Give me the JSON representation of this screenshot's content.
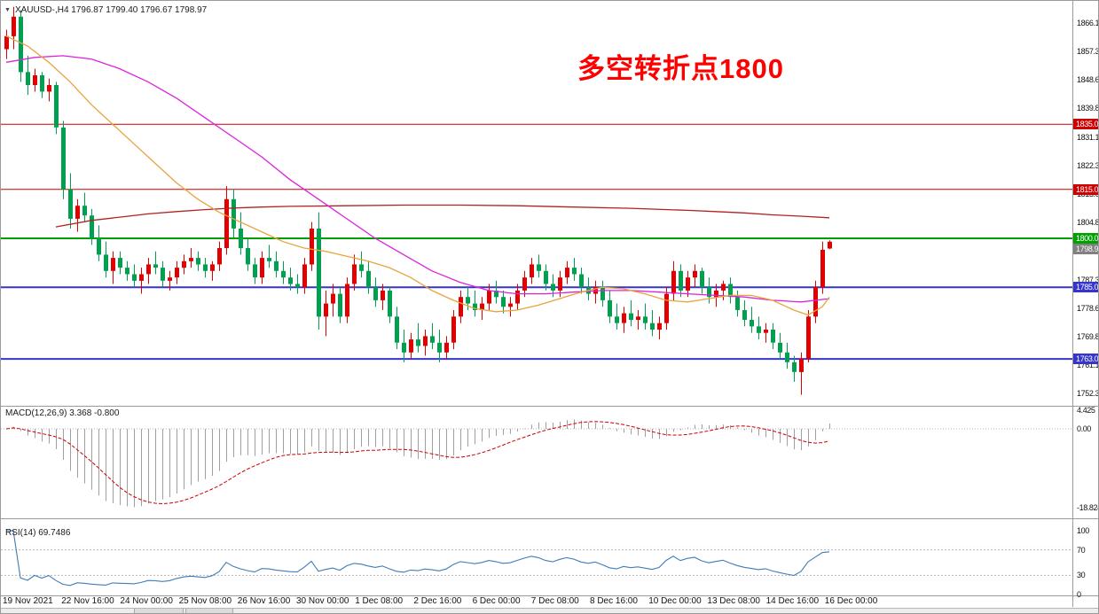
{
  "header": {
    "collapse_icon": "▼",
    "symbol_line": "XAUUSD-,H4 1796.87 1799.40 1796.67 1798.97"
  },
  "annotation": {
    "text": "多空转折点1800",
    "color": "#ff0000"
  },
  "panels": {
    "macd": {
      "label": "MACD(12,26,9) 3.368 -0.800",
      "scale_labels": [
        "4.425",
        "0.00",
        "-18.824"
      ]
    },
    "rsi": {
      "label": "RSI(14) 69.7486",
      "scale_labels": [
        "100",
        "70",
        "30",
        "0"
      ],
      "levels": [
        70,
        30
      ]
    }
  },
  "chart_data": {
    "type": "candlestick",
    "symbol": "XAUUSD-",
    "timeframe": "H4",
    "current_ohlc": {
      "open": "1796.87",
      "high": "1799.40",
      "low": "1796.67",
      "close": "1798.97"
    },
    "ylim": [
      1748.9,
      1870.7
    ],
    "price_axis_labels": [
      "1866.10",
      "1857.35",
      "1848.60",
      "1839.85",
      "1831.10",
      "1822.35",
      "1813.60",
      "1804.85",
      "1796.10",
      "1787.35",
      "1778.60",
      "1769.85",
      "1761.10",
      "1752.35"
    ],
    "x_axis_labels": [
      "19 Nov 2021",
      "22 Nov 16:00",
      "24 Nov 00:00",
      "25 Nov 08:00",
      "26 Nov 16:00",
      "30 Nov 00:00",
      "1 Dec 08:00",
      "2 Dec 16:00",
      "6 Dec 00:00",
      "7 Dec 08:00",
      "8 Dec 16:00",
      "10 Dec 00:00",
      "13 Dec 08:00",
      "14 Dec 16:00",
      "16 Dec 00:00"
    ],
    "horizontal_lines": [
      {
        "price": 1835.0,
        "label": "1835.00",
        "color": "#cc0000",
        "width": 1
      },
      {
        "price": 1815.0,
        "label": "1815.00",
        "color": "#cc0000",
        "width": 1
      },
      {
        "price": 1800.0,
        "label": "1800.00",
        "color": "#00a000",
        "width": 2
      },
      {
        "price": 1785.0,
        "label": "1785.00",
        "color": "#3535cc",
        "width": 2
      },
      {
        "price": 1763.0,
        "label": "1763.00",
        "color": "#3535cc",
        "width": 2
      }
    ],
    "current_price": {
      "value": 1798.97,
      "label": "1798.97",
      "color": "#808080"
    },
    "colors": {
      "up": "#e00000",
      "down": "#00a050"
    },
    "candles": [
      [
        1858,
        1864,
        1855,
        1862
      ],
      [
        1862,
        1871,
        1858,
        1868
      ],
      [
        1868,
        1870,
        1848,
        1851
      ],
      [
        1851,
        1856,
        1844,
        1847
      ],
      [
        1847,
        1852,
        1845,
        1850
      ],
      [
        1850,
        1851,
        1843,
        1845
      ],
      [
        1845,
        1849,
        1842,
        1847
      ],
      [
        1847,
        1848,
        1832,
        1834
      ],
      [
        1834,
        1836,
        1812,
        1815
      ],
      [
        1815,
        1820,
        1803,
        1806
      ],
      [
        1806,
        1812,
        1802,
        1810
      ],
      [
        1810,
        1814,
        1805,
        1807
      ],
      [
        1807,
        1809,
        1798,
        1800
      ],
      [
        1800,
        1804,
        1793,
        1795
      ],
      [
        1795,
        1799,
        1788,
        1790
      ],
      [
        1790,
        1796,
        1786,
        1794
      ],
      [
        1794,
        1796,
        1789,
        1791
      ],
      [
        1791,
        1793,
        1787,
        1789
      ],
      [
        1789,
        1792,
        1785,
        1787
      ],
      [
        1787,
        1791,
        1783,
        1789
      ],
      [
        1789,
        1794,
        1786,
        1792
      ],
      [
        1792,
        1796,
        1789,
        1791
      ],
      [
        1791,
        1793,
        1785,
        1787
      ],
      [
        1787,
        1790,
        1784,
        1788
      ],
      [
        1788,
        1793,
        1786,
        1791
      ],
      [
        1791,
        1795,
        1789,
        1793
      ],
      [
        1793,
        1797,
        1791,
        1794
      ],
      [
        1794,
        1796,
        1790,
        1792
      ],
      [
        1792,
        1794,
        1788,
        1790
      ],
      [
        1790,
        1793,
        1787,
        1792
      ],
      [
        1792,
        1799,
        1790,
        1797
      ],
      [
        1797,
        1816,
        1795,
        1812
      ],
      [
        1812,
        1815,
        1800,
        1803
      ],
      [
        1803,
        1808,
        1795,
        1797
      ],
      [
        1797,
        1800,
        1790,
        1792
      ],
      [
        1792,
        1794,
        1786,
        1788
      ],
      [
        1788,
        1796,
        1786,
        1794
      ],
      [
        1794,
        1798,
        1791,
        1793
      ],
      [
        1793,
        1796,
        1788,
        1790
      ],
      [
        1790,
        1793,
        1786,
        1788
      ],
      [
        1788,
        1791,
        1784,
        1786
      ],
      [
        1786,
        1789,
        1783,
        1785
      ],
      [
        1785,
        1794,
        1783,
        1792
      ],
      [
        1792,
        1805,
        1790,
        1803
      ],
      [
        1803,
        1808,
        1772,
        1776
      ],
      [
        1776,
        1784,
        1770,
        1780
      ],
      [
        1780,
        1786,
        1776,
        1783
      ],
      [
        1783,
        1785,
        1774,
        1776
      ],
      [
        1776,
        1788,
        1774,
        1786
      ],
      [
        1786,
        1795,
        1784,
        1792
      ],
      [
        1792,
        1796,
        1788,
        1790
      ],
      [
        1790,
        1793,
        1783,
        1785
      ],
      [
        1785,
        1788,
        1779,
        1781
      ],
      [
        1781,
        1786,
        1778,
        1784
      ],
      [
        1784,
        1785,
        1774,
        1776
      ],
      [
        1776,
        1779,
        1766,
        1768
      ],
      [
        1768,
        1772,
        1762,
        1765
      ],
      [
        1765,
        1771,
        1763,
        1769
      ],
      [
        1769,
        1774,
        1765,
        1767
      ],
      [
        1767,
        1772,
        1764,
        1770
      ],
      [
        1770,
        1774,
        1766,
        1768
      ],
      [
        1768,
        1772,
        1762,
        1765
      ],
      [
        1765,
        1770,
        1763,
        1768
      ],
      [
        1768,
        1778,
        1766,
        1776
      ],
      [
        1776,
        1784,
        1774,
        1782
      ],
      [
        1782,
        1785,
        1778,
        1780
      ],
      [
        1780,
        1784,
        1776,
        1778
      ],
      [
        1778,
        1782,
        1775,
        1780
      ],
      [
        1780,
        1786,
        1778,
        1784
      ],
      [
        1784,
        1787,
        1780,
        1782
      ],
      [
        1782,
        1784,
        1777,
        1779
      ],
      [
        1779,
        1782,
        1776,
        1780
      ],
      [
        1780,
        1786,
        1778,
        1784
      ],
      [
        1784,
        1790,
        1782,
        1788
      ],
      [
        1788,
        1794,
        1786,
        1792
      ],
      [
        1792,
        1795,
        1788,
        1790
      ],
      [
        1790,
        1792,
        1784,
        1786
      ],
      [
        1786,
        1789,
        1782,
        1784
      ],
      [
        1784,
        1790,
        1782,
        1788
      ],
      [
        1788,
        1793,
        1786,
        1791
      ],
      [
        1791,
        1794,
        1787,
        1789
      ],
      [
        1789,
        1791,
        1783,
        1785
      ],
      [
        1785,
        1788,
        1781,
        1783
      ],
      [
        1783,
        1787,
        1780,
        1785
      ],
      [
        1785,
        1787,
        1779,
        1781
      ],
      [
        1781,
        1784,
        1774,
        1776
      ],
      [
        1776,
        1780,
        1772,
        1774
      ],
      [
        1774,
        1779,
        1771,
        1777
      ],
      [
        1777,
        1781,
        1773,
        1775
      ],
      [
        1775,
        1778,
        1772,
        1776
      ],
      [
        1776,
        1780,
        1772,
        1774
      ],
      [
        1774,
        1778,
        1770,
        1772
      ],
      [
        1772,
        1776,
        1769,
        1774
      ],
      [
        1774,
        1785,
        1772,
        1783
      ],
      [
        1783,
        1793,
        1781,
        1790
      ],
      [
        1790,
        1792,
        1782,
        1784
      ],
      [
        1784,
        1790,
        1782,
        1788
      ],
      [
        1788,
        1792,
        1785,
        1790
      ],
      [
        1790,
        1791,
        1783,
        1785
      ],
      [
        1785,
        1788,
        1780,
        1782
      ],
      [
        1782,
        1786,
        1779,
        1784
      ],
      [
        1784,
        1787,
        1781,
        1786
      ],
      [
        1786,
        1788,
        1780,
        1782
      ],
      [
        1782,
        1784,
        1776,
        1778
      ],
      [
        1778,
        1781,
        1773,
        1775
      ],
      [
        1775,
        1779,
        1771,
        1773
      ],
      [
        1773,
        1776,
        1769,
        1771
      ],
      [
        1771,
        1774,
        1768,
        1772
      ],
      [
        1772,
        1774,
        1766,
        1768
      ],
      [
        1768,
        1771,
        1763,
        1765
      ],
      [
        1765,
        1768,
        1760,
        1762
      ],
      [
        1762,
        1764,
        1756,
        1759
      ],
      [
        1759,
        1765,
        1752,
        1763
      ],
      [
        1763,
        1778,
        1762,
        1776
      ],
      [
        1776,
        1787,
        1774,
        1785
      ],
      [
        1785,
        1799,
        1783,
        1796.5
      ],
      [
        1796.87,
        1799.4,
        1796.67,
        1798.97
      ]
    ],
    "moving_averages": [
      {
        "name": "ma-slow",
        "color": "#b22222",
        "points": [
          [
            7,
            1803.5
          ],
          [
            12,
            1805.5
          ],
          [
            16,
            1806.5
          ],
          [
            20,
            1807.5
          ],
          [
            24,
            1808.2
          ],
          [
            28,
            1808.8
          ],
          [
            32,
            1809.3
          ],
          [
            36,
            1809.6
          ],
          [
            40,
            1809.8
          ],
          [
            48,
            1810
          ],
          [
            56,
            1810.2
          ],
          [
            64,
            1810.2
          ],
          [
            72,
            1810
          ],
          [
            80,
            1809.6
          ],
          [
            88,
            1809.2
          ],
          [
            96,
            1808.6
          ],
          [
            100,
            1808.2
          ],
          [
            104,
            1807.8
          ],
          [
            108,
            1807.2
          ],
          [
            112,
            1806.8
          ],
          [
            116,
            1806.3
          ]
        ]
      },
      {
        "name": "ma-medium",
        "color": "#dd22dd",
        "points": [
          [
            0,
            1854
          ],
          [
            4,
            1855.5
          ],
          [
            8,
            1856
          ],
          [
            12,
            1855
          ],
          [
            16,
            1852
          ],
          [
            20,
            1848
          ],
          [
            24,
            1843
          ],
          [
            28,
            1837
          ],
          [
            32,
            1831
          ],
          [
            36,
            1825
          ],
          [
            40,
            1818
          ],
          [
            44,
            1812
          ],
          [
            48,
            1806
          ],
          [
            52,
            1800
          ],
          [
            56,
            1795
          ],
          [
            60,
            1790
          ],
          [
            64,
            1786.5
          ],
          [
            68,
            1784
          ],
          [
            72,
            1783
          ],
          [
            76,
            1783
          ],
          [
            80,
            1783.5
          ],
          [
            84,
            1784
          ],
          [
            88,
            1784
          ],
          [
            92,
            1783.5
          ],
          [
            96,
            1783
          ],
          [
            100,
            1782.5
          ],
          [
            104,
            1782
          ],
          [
            108,
            1781
          ],
          [
            112,
            1780.5
          ],
          [
            116,
            1781.5
          ]
        ]
      },
      {
        "name": "ma-fast",
        "color": "#e8a33d",
        "points": [
          [
            0,
            1862
          ],
          [
            3,
            1859
          ],
          [
            6,
            1854
          ],
          [
            9,
            1848
          ],
          [
            12,
            1841
          ],
          [
            15,
            1835
          ],
          [
            18,
            1829
          ],
          [
            21,
            1823
          ],
          [
            24,
            1817
          ],
          [
            27,
            1812
          ],
          [
            30,
            1808
          ],
          [
            33,
            1805
          ],
          [
            36,
            1802
          ],
          [
            39,
            1799
          ],
          [
            42,
            1797
          ],
          [
            45,
            1796
          ],
          [
            48,
            1794.5
          ],
          [
            51,
            1793
          ],
          [
            54,
            1791
          ],
          [
            57,
            1788
          ],
          [
            60,
            1784
          ],
          [
            63,
            1781
          ],
          [
            66,
            1778.5
          ],
          [
            69,
            1777.5
          ],
          [
            72,
            1778
          ],
          [
            75,
            1779.5
          ],
          [
            78,
            1781.5
          ],
          [
            81,
            1783.5
          ],
          [
            84,
            1785
          ],
          [
            87,
            1784.5
          ],
          [
            90,
            1783
          ],
          [
            93,
            1781
          ],
          [
            96,
            1780.5
          ],
          [
            99,
            1781.5
          ],
          [
            102,
            1782.5
          ],
          [
            105,
            1782.5
          ],
          [
            108,
            1781
          ],
          [
            111,
            1778
          ],
          [
            113,
            1776.5
          ],
          [
            115,
            1779
          ],
          [
            116,
            1782
          ]
        ]
      }
    ],
    "macd": {
      "params": [
        12,
        26,
        9
      ],
      "main_last": 3.368,
      "signal_last": -0.8,
      "ylim": [
        -18.824,
        4.425
      ]
    },
    "rsi": {
      "period": 14,
      "last": 69.7486
    }
  }
}
